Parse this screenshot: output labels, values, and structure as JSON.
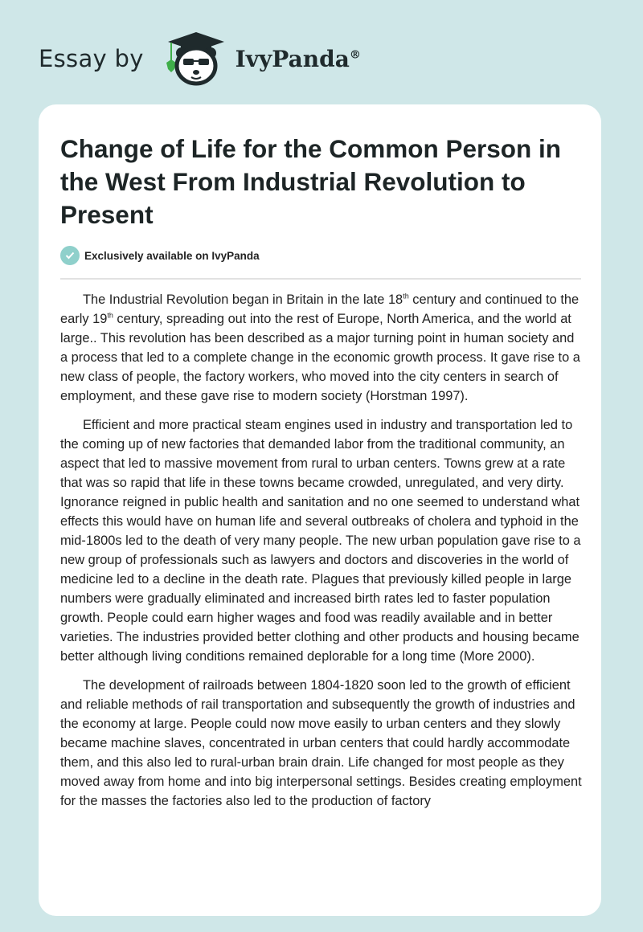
{
  "header": {
    "prefix": "Essay by",
    "brand": "IvyPanda",
    "brand_mark": "®",
    "logo_icon": "panda-graduate-logo"
  },
  "article": {
    "title": "Change of Life for the Common Person in the West From Industrial Revolution to Present",
    "badge": {
      "icon": "check-circle-icon",
      "text": "Exclusively available on IvyPanda",
      "color": "#8fd0cb"
    },
    "p1": {
      "a": "The Industrial Revolution began in Britain in the late 18",
      "s1": "th",
      "b": " century and continued to the early 19",
      "s2": "th",
      "c": " century, spreading out into the rest of Europe, North America, and the world at large.. This revolution has been described as a major turning point in human society and a process that led to a complete change in the economic growth process. It gave rise to a new class of people, the factory workers, who moved into the city centers in search of employment, and these gave rise to modern society (Horstman 1997)."
    },
    "p2": "Efficient and more practical steam engines used in industry and transportation led to the coming up of new factories that demanded labor from the traditional community, an aspect that led to massive movement from rural to urban centers. Towns grew at a rate that was so rapid that life in these towns became crowded, unregulated, and very dirty. Ignorance reigned in public health and sanitation and no one seemed to understand what effects this would have on human life and several outbreaks of cholera and typhoid in the mid-1800s led to the death of very many people. The new urban population gave rise to a new group of professionals such as lawyers and doctors and discoveries in the world of medicine led to a decline in the death rate. Plagues that previously killed people in large numbers were gradually eliminated and increased birth rates led to faster population growth. People could earn higher wages and food was readily available and in better varieties. The industries provided better clothing and other products and housing became better although living conditions remained deplorable for a long time (More 2000).",
    "p3": "The development of railroads between 1804-1820 soon led to the growth of efficient and reliable methods of rail transportation and subsequently the growth of industries and the economy at large. People could now move easily to urban centers and they slowly became machine slaves, concentrated in urban centers that could hardly accommodate them, and this also led to rural-urban brain drain. Life changed for most people as they moved away from home and into big interpersonal settings. Besides creating employment for the masses the factories also led to the production of factory"
  }
}
